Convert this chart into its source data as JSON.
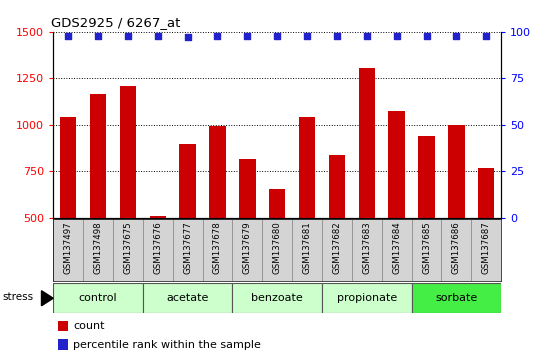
{
  "title": "GDS2925 / 6267_at",
  "samples": [
    "GSM137497",
    "GSM137498",
    "GSM137675",
    "GSM137676",
    "GSM137677",
    "GSM137678",
    "GSM137679",
    "GSM137680",
    "GSM137681",
    "GSM137682",
    "GSM137683",
    "GSM137684",
    "GSM137685",
    "GSM137686",
    "GSM137687"
  ],
  "counts": [
    1040,
    1165,
    1210,
    510,
    895,
    995,
    815,
    655,
    1040,
    840,
    1305,
    1075,
    940,
    1000,
    770
  ],
  "percentiles": [
    98,
    98,
    98,
    98,
    97,
    98,
    98,
    98,
    98,
    98,
    98,
    98,
    98,
    98,
    98
  ],
  "bar_color": "#cc0000",
  "dot_color": "#2222cc",
  "ylim_left": [
    500,
    1500
  ],
  "ylim_right": [
    0,
    100
  ],
  "yticks_left": [
    500,
    750,
    1000,
    1250,
    1500
  ],
  "yticks_right": [
    0,
    25,
    50,
    75,
    100
  ],
  "groups": [
    {
      "label": "control",
      "start": 0,
      "end": 3,
      "color": "#ccffcc"
    },
    {
      "label": "acetate",
      "start": 3,
      "end": 6,
      "color": "#ccffcc"
    },
    {
      "label": "benzoate",
      "start": 6,
      "end": 9,
      "color": "#ccffcc"
    },
    {
      "label": "propionate",
      "start": 9,
      "end": 12,
      "color": "#ccffcc"
    },
    {
      "label": "sorbate",
      "start": 12,
      "end": 15,
      "color": "#44ee44"
    }
  ],
  "stress_label": "stress",
  "legend_count_label": "count",
  "legend_pct_label": "percentile rank within the sample",
  "plot_bg": "#ffffff",
  "sample_box_bg": "#d0d0d0",
  "bar_bottom": 500
}
